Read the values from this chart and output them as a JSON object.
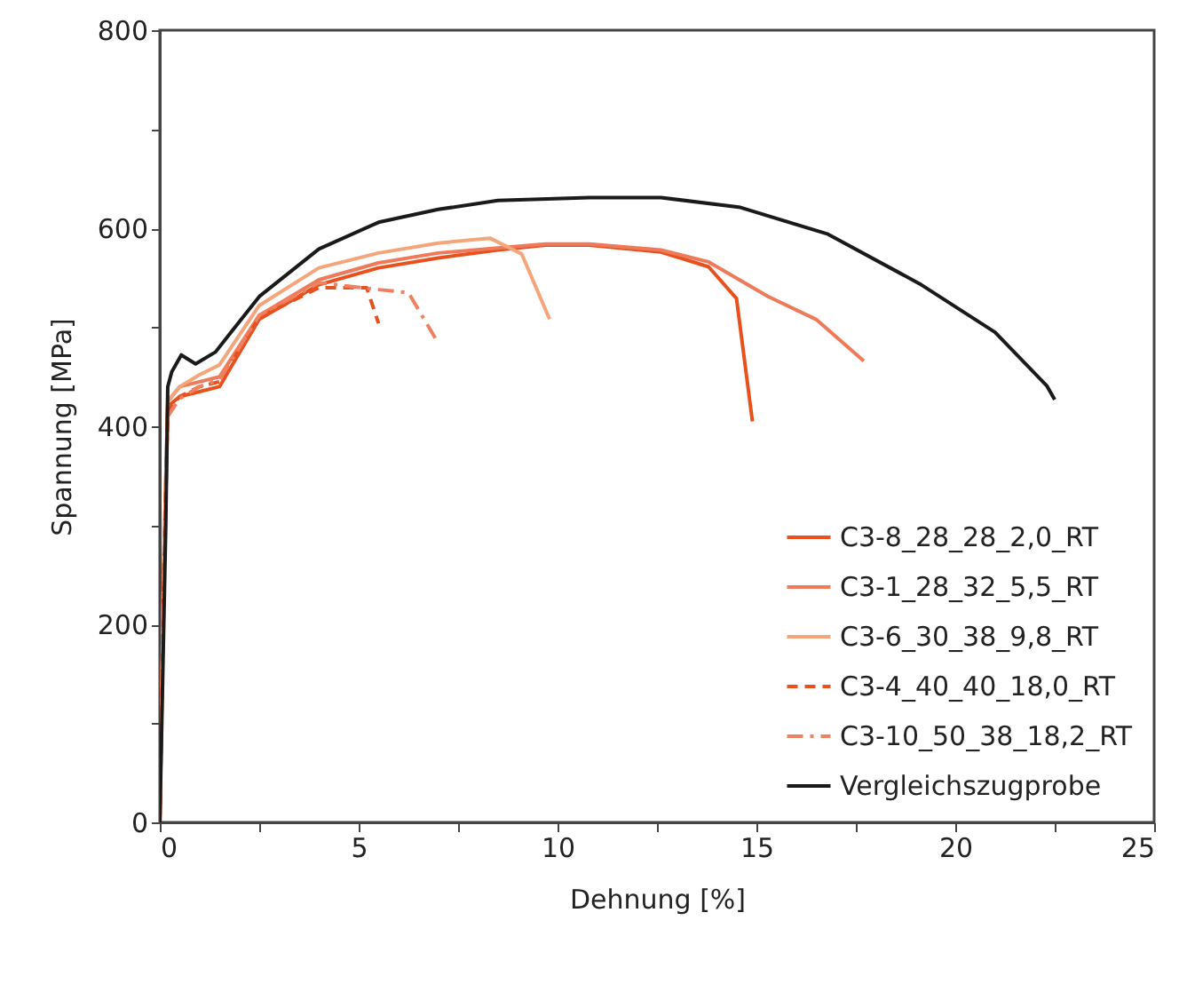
{
  "chart_data": {
    "type": "line",
    "xlabel": "Dehnung [%]",
    "ylabel": "Spannung [MPa]",
    "xlim": [
      0,
      25
    ],
    "ylim": [
      0,
      800
    ],
    "xticks": [
      0,
      {
        "value": 2.5,
        "label": null
      },
      5,
      {
        "value": 7.5,
        "label": null
      },
      10,
      {
        "value": 12.5,
        "label": null
      },
      15,
      {
        "value": 17.5,
        "label": null
      },
      20,
      {
        "value": 22.5,
        "label": null
      },
      25
    ],
    "yticks": [
      0,
      {
        "value": 100,
        "label": null
      },
      200,
      {
        "value": 300,
        "label": null
      },
      400,
      {
        "value": 500,
        "label": null
      },
      600,
      {
        "value": 700,
        "label": null
      },
      800
    ],
    "grid": false,
    "legend": "bottom right",
    "marker": "none",
    "series": [
      {
        "name": "C3-8_28_28_2,0_RT",
        "color": "#e8501e",
        "line_style": "solid",
        "x": [
          0,
          0.1,
          0.2,
          0.5,
          1.0,
          1.5,
          2.5,
          4.0,
          5.5,
          7.0,
          8.5,
          9.7,
          10.8,
          12.6,
          13.8,
          14.5,
          14.9
        ],
        "values": [
          0,
          250,
          420,
          430,
          435,
          440,
          508,
          543,
          560,
          570,
          578,
          583,
          583,
          576,
          561,
          529,
          405
        ]
      },
      {
        "name": "C3-1_28_32_5,5_RT",
        "color": "#ee7a5a",
        "line_style": "solid",
        "x": [
          0,
          0.1,
          0.2,
          0.5,
          1.0,
          1.5,
          2.5,
          4.0,
          5.5,
          7.0,
          8.5,
          9.7,
          10.8,
          12.6,
          13.8,
          15.3,
          16.5,
          17.7
        ],
        "values": [
          0,
          260,
          425,
          440,
          445,
          450,
          512,
          548,
          565,
          575,
          580,
          584,
          584,
          578,
          566,
          531,
          508,
          466
        ]
      },
      {
        "name": "C3-6_30_38_9,8_RT",
        "color": "#f5a57a",
        "line_style": "solid",
        "x": [
          0,
          0.1,
          0.2,
          0.5,
          1.0,
          1.5,
          2.5,
          4.0,
          5.5,
          7.0,
          8.3,
          9.1,
          9.8
        ],
        "values": [
          0,
          270,
          425,
          440,
          452,
          462,
          522,
          560,
          575,
          585,
          590,
          574,
          508
        ]
      },
      {
        "name": "C3-4_40_40_18,0_RT",
        "color": "#e8501e",
        "line_style": "dashed",
        "x": [
          0,
          0.1,
          0.2,
          0.5,
          1.0,
          1.5,
          2.5,
          4.0,
          5.2,
          5.5
        ],
        "values": [
          0,
          250,
          415,
          430,
          440,
          445,
          510,
          540,
          540,
          504
        ]
      },
      {
        "name": "C3-10_50_38_18,2_RT",
        "color": "#ef8060",
        "line_style": "dashdot",
        "x": [
          0,
          0.1,
          0.2,
          0.5,
          1.0,
          1.5,
          2.5,
          4.0,
          5.5,
          6.25,
          7.0
        ],
        "values": [
          0,
          240,
          410,
          428,
          440,
          447,
          512,
          545,
          538,
          535,
          484
        ]
      },
      {
        "name": "Vergleichszugprobe",
        "color": "#1a1a1a",
        "line_style": "solid",
        "x": [
          0,
          0.15,
          0.2,
          0.3,
          0.54,
          0.9,
          1.4,
          2.5,
          4.0,
          5.5,
          7.0,
          8.5,
          10.8,
          12.6,
          14.6,
          16.8,
          19.1,
          21.0,
          22.3,
          22.5
        ],
        "values": [
          0,
          300,
          440,
          455,
          472,
          463,
          475,
          531,
          579,
          606,
          619,
          628,
          631,
          631,
          621,
          594,
          544,
          495,
          441,
          427
        ]
      }
    ]
  }
}
